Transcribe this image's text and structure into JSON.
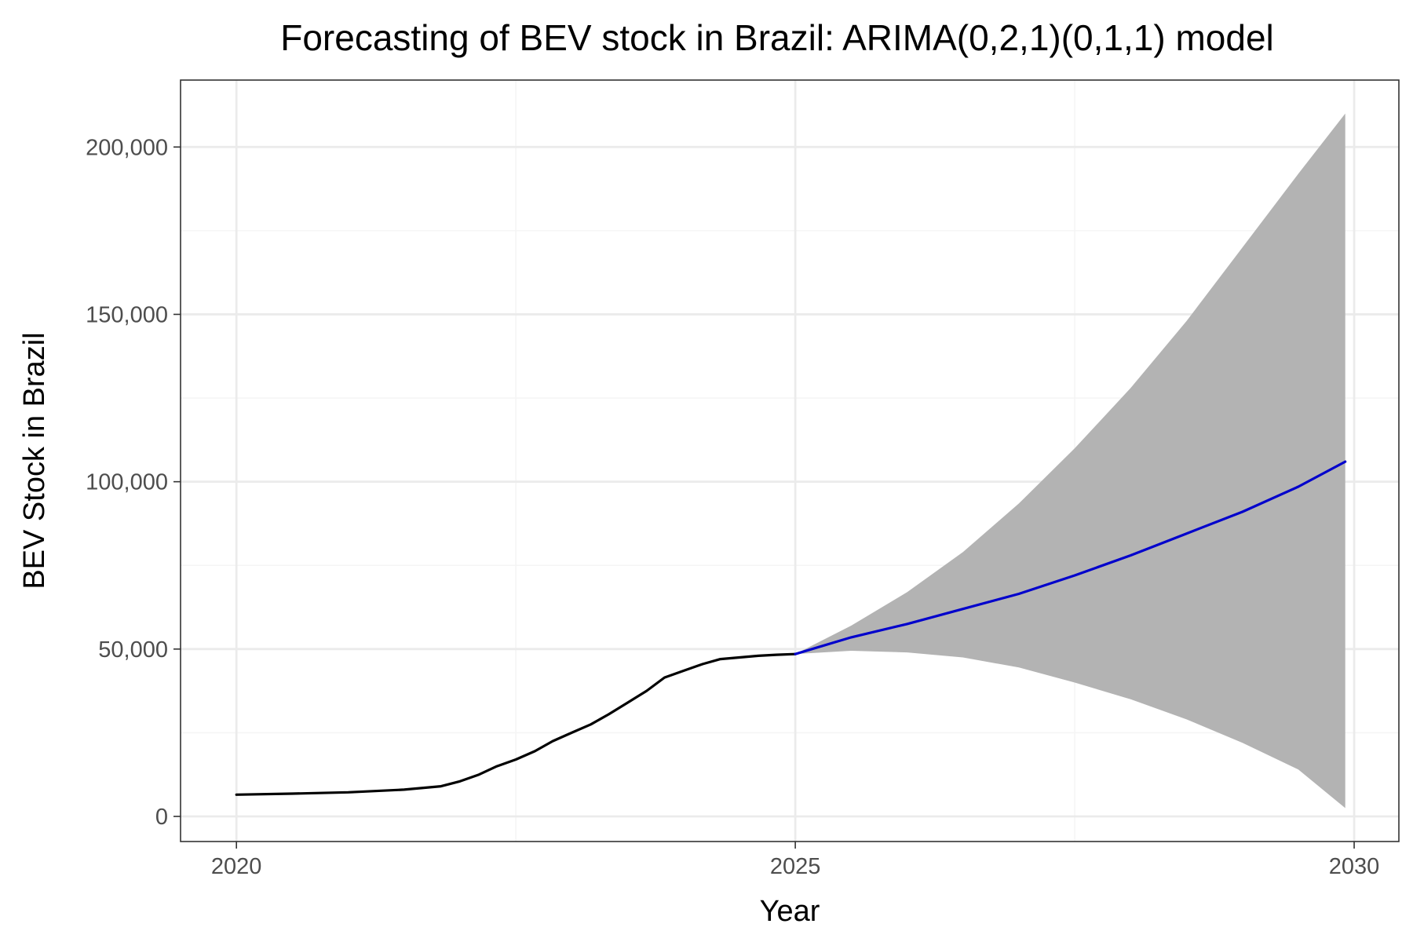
{
  "chart_data": {
    "type": "line",
    "title": "Forecasting of BEV stock in Brazil: ARIMA(0,2,1)(0,1,1) model",
    "xlabel": "Year",
    "ylabel": "BEV Stock in Brazil",
    "xlim": [
      2019.5,
      2030.4
    ],
    "ylim": [
      -7500,
      220000
    ],
    "x_ticks": [
      2020,
      2025,
      2030
    ],
    "x_tick_labels": [
      "2020",
      "2025",
      "2030"
    ],
    "y_ticks": [
      0,
      50000,
      100000,
      150000,
      200000
    ],
    "y_tick_labels": [
      "0",
      "50,000",
      "100,000",
      "150,000",
      "200,000"
    ],
    "grid": true,
    "legend": "none",
    "colors": {
      "observed": "#000000",
      "forecast": "#0000cc",
      "interval": "#b3b3b3",
      "grid_major": "#ebebeb",
      "grid_minor": "#f5f5f5",
      "panel_border": "#333333"
    },
    "series": [
      {
        "role": "observed",
        "x": [
          2020.0,
          2020.5,
          2021.0,
          2021.5,
          2021.83,
          2022.0,
          2022.17,
          2022.33,
          2022.5,
          2022.67,
          2022.83,
          2023.0,
          2023.17,
          2023.33,
          2023.5,
          2023.67,
          2023.83,
          2024.0,
          2024.17,
          2024.33,
          2024.5,
          2024.67,
          2024.83,
          2025.0
        ],
        "y": [
          6500,
          6800,
          7200,
          8000,
          9000,
          10500,
          12500,
          15000,
          17000,
          19500,
          22500,
          25000,
          27500,
          30500,
          34000,
          37500,
          41500,
          43500,
          45500,
          47000,
          47500,
          48000,
          48300,
          48500
        ]
      },
      {
        "role": "forecast",
        "x": [
          2025.0,
          2025.5,
          2026.0,
          2026.5,
          2027.0,
          2027.5,
          2028.0,
          2028.5,
          2029.0,
          2029.5,
          2029.92
        ],
        "y": [
          48500,
          53500,
          57500,
          62000,
          66500,
          72000,
          78000,
          84500,
          91000,
          98500,
          106000
        ]
      },
      {
        "role": "interval",
        "x": [
          2025.0,
          2025.5,
          2026.0,
          2026.5,
          2027.0,
          2027.5,
          2028.0,
          2028.5,
          2029.0,
          2029.5,
          2029.92
        ],
        "lower": [
          48500,
          49500,
          49000,
          47500,
          44500,
          40000,
          35000,
          29000,
          22000,
          14000,
          2500
        ],
        "upper": [
          48500,
          57000,
          67000,
          79000,
          93500,
          110000,
          128000,
          148000,
          170000,
          192000,
          210000
        ]
      }
    ]
  }
}
